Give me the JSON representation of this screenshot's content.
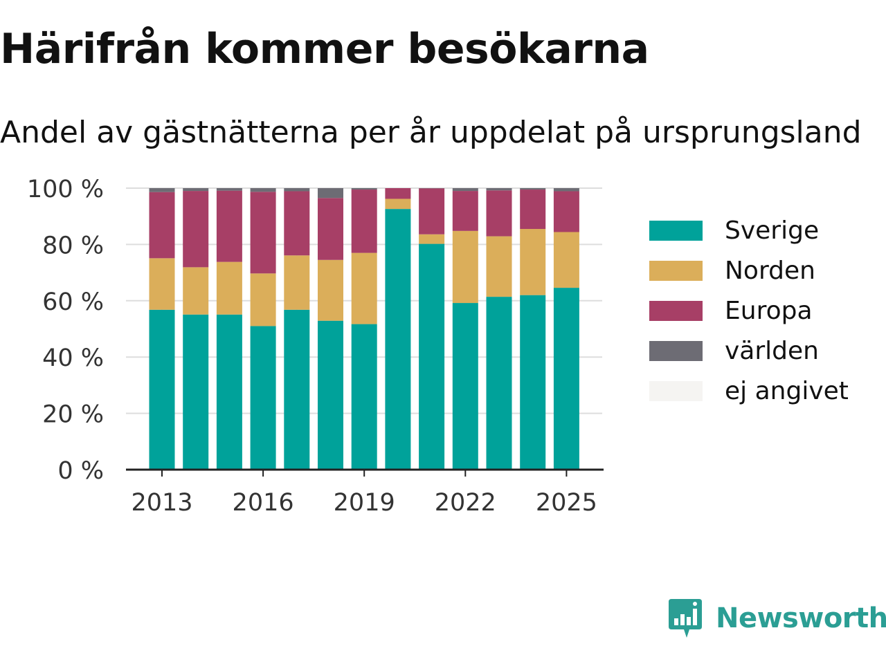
{
  "title": "Härifrån kommer besökarna",
  "subtitle": "Andel av gästnätterna per år uppdelat på ursprungsland",
  "brand": {
    "name": "Newsworthy",
    "logo_icon": "newsworthy-chart-bubble-icon"
  },
  "colors": {
    "Sverige": "#00a29a",
    "Norden": "#dbae5a",
    "Europa": "#a73f66",
    "världen": "#6d6c74",
    "ej angivet": "#f5f4f2",
    "brand": "#2b9e94"
  },
  "chart_data": {
    "type": "bar",
    "stacked": true,
    "categories": [
      "2013",
      "2014",
      "2015",
      "2016",
      "2017",
      "2018",
      "2019",
      "2020",
      "2021",
      "2022",
      "2023",
      "2024",
      "2025"
    ],
    "x_tick_labels": [
      "2013",
      "2016",
      "2019",
      "2022",
      "2025"
    ],
    "y_tick_labels": [
      "0 %",
      "20 %",
      "40 %",
      "60 %",
      "80 %",
      "100 %"
    ],
    "ylim": [
      0,
      100
    ],
    "grid": true,
    "legend_position": "right",
    "series": [
      {
        "name": "Sverige",
        "values": [
          56.8,
          55.1,
          55.1,
          51.0,
          56.8,
          52.9,
          51.7,
          92.6,
          80.2,
          59.2,
          61.4,
          62.0,
          64.6
        ]
      },
      {
        "name": "Norden",
        "values": [
          18.3,
          16.8,
          18.7,
          18.7,
          19.3,
          21.6,
          25.3,
          3.6,
          3.4,
          25.6,
          21.5,
          23.5,
          19.8
        ]
      },
      {
        "name": "Europa",
        "values": [
          23.5,
          27.1,
          25.3,
          29.0,
          22.8,
          22.0,
          22.5,
          3.8,
          16.3,
          14.2,
          16.3,
          14.0,
          14.5
        ]
      },
      {
        "name": "världen",
        "values": [
          1.4,
          1.0,
          0.9,
          1.3,
          1.1,
          3.5,
          0.5,
          0.0,
          0.1,
          1.0,
          0.8,
          0.5,
          1.1
        ]
      },
      {
        "name": "ej angivet",
        "values": [
          0.0,
          0.0,
          0.0,
          0.0,
          0.0,
          0.0,
          0.0,
          0.0,
          0.0,
          0.0,
          0.0,
          0.0,
          0.0
        ]
      }
    ]
  }
}
